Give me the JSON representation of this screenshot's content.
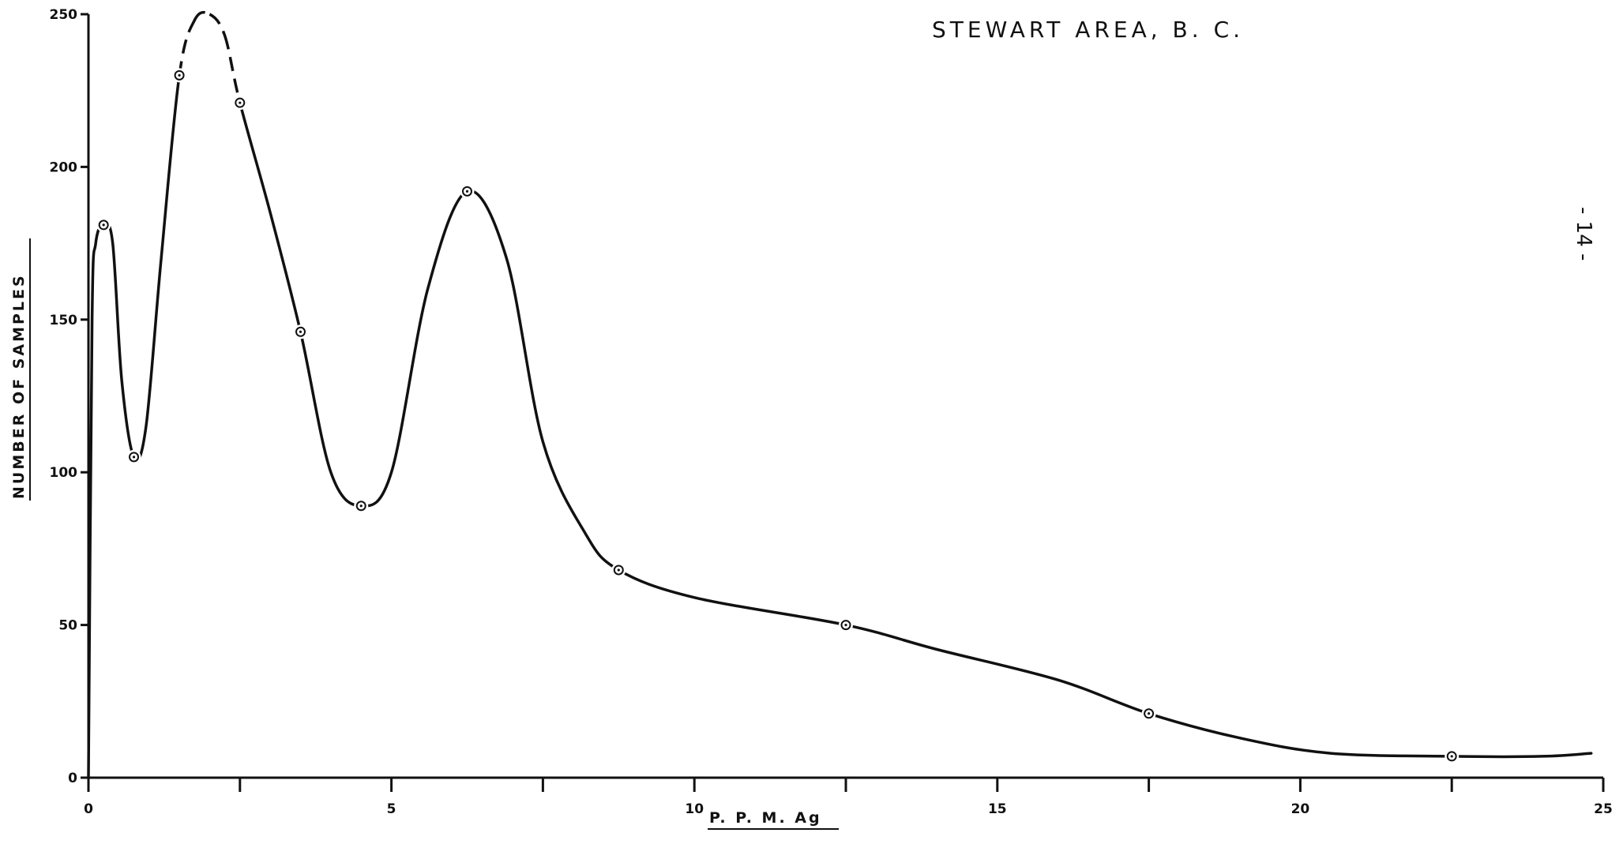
{
  "page_number": "- 14 -",
  "chart_data": {
    "type": "line",
    "title": "STEWART AREA, B. C.",
    "xlabel": "P. P. M.  Ag",
    "ylabel": "NUMBER OF SAMPLES",
    "xlim": [
      0,
      25
    ],
    "ylim": [
      0,
      250
    ],
    "xticks": [
      0,
      5,
      10,
      15,
      20,
      25
    ],
    "yticks": [
      0,
      50,
      100,
      150,
      200,
      250
    ],
    "x_minor_ticks": [
      2.5,
      7.5,
      12.5,
      17.5,
      22.5
    ],
    "grid": false,
    "series": [
      {
        "points": [
          {
            "x": 0.25,
            "y": 181
          },
          {
            "x": 0.75,
            "y": 105
          },
          {
            "x": 1.5,
            "y": 230
          },
          {
            "x": 2.5,
            "y": 221
          },
          {
            "x": 3.5,
            "y": 146
          },
          {
            "x": 4.5,
            "y": 89
          },
          {
            "x": 6.25,
            "y": 192
          },
          {
            "x": 8.75,
            "y": 68
          },
          {
            "x": 12.5,
            "y": 50
          },
          {
            "x": 17.5,
            "y": 21
          },
          {
            "x": 22.5,
            "y": 7
          }
        ],
        "curve": [
          {
            "x": 0.0,
            "y": 0
          },
          {
            "x": 0.06,
            "y": 150
          },
          {
            "x": 0.12,
            "y": 175
          },
          {
            "x": 0.25,
            "y": 181
          },
          {
            "x": 0.4,
            "y": 175
          },
          {
            "x": 0.55,
            "y": 130
          },
          {
            "x": 0.75,
            "y": 105
          },
          {
            "x": 0.95,
            "y": 115
          },
          {
            "x": 1.2,
            "y": 170
          },
          {
            "x": 1.5,
            "y": 230
          },
          {
            "x": 1.75,
            "y": 248
          },
          {
            "x": 2.0,
            "y": 250
          },
          {
            "x": 2.25,
            "y": 243
          },
          {
            "x": 2.5,
            "y": 221
          },
          {
            "x": 3.0,
            "y": 185
          },
          {
            "x": 3.5,
            "y": 146
          },
          {
            "x": 4.0,
            "y": 100
          },
          {
            "x": 4.5,
            "y": 89
          },
          {
            "x": 5.0,
            "y": 100
          },
          {
            "x": 5.6,
            "y": 160
          },
          {
            "x": 6.25,
            "y": 192
          },
          {
            "x": 6.9,
            "y": 170
          },
          {
            "x": 7.5,
            "y": 110
          },
          {
            "x": 8.2,
            "y": 80
          },
          {
            "x": 8.75,
            "y": 68
          },
          {
            "x": 10.0,
            "y": 59
          },
          {
            "x": 12.5,
            "y": 50
          },
          {
            "x": 14.0,
            "y": 42
          },
          {
            "x": 16.0,
            "y": 32
          },
          {
            "x": 17.5,
            "y": 21
          },
          {
            "x": 19.0,
            "y": 13
          },
          {
            "x": 20.5,
            "y": 8
          },
          {
            "x": 22.5,
            "y": 7
          },
          {
            "x": 24.0,
            "y": 7
          },
          {
            "x": 24.8,
            "y": 8
          }
        ],
        "dashed_range": [
          1.5,
          2.5
        ],
        "color": "#111111"
      }
    ]
  }
}
